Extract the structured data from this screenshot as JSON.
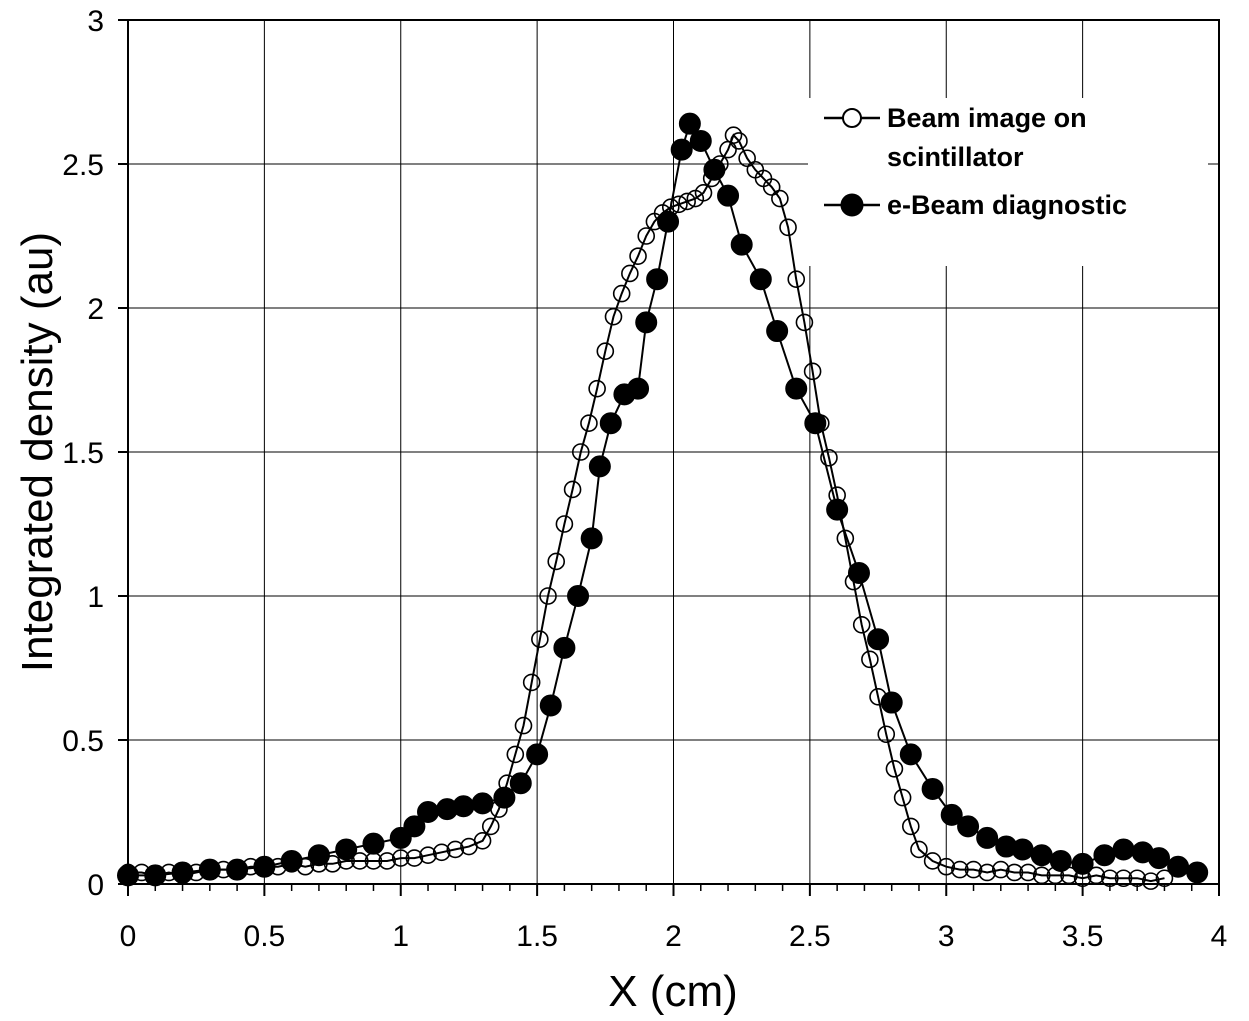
{
  "chart_data": {
    "type": "scatter",
    "title": "",
    "xlabel": "X (cm)",
    "ylabel": "Integrated density (au)",
    "xlim": [
      0,
      4
    ],
    "ylim": [
      0,
      3
    ],
    "x_ticks": [
      "0",
      "0.5",
      "1",
      "1.5",
      "2",
      "2.5",
      "3",
      "3.5",
      "4"
    ],
    "y_ticks": [
      "0",
      "0.5",
      "1",
      "1.5",
      "2",
      "2.5",
      "3"
    ],
    "grid": true,
    "legend_position": "top-right",
    "series": [
      {
        "name": "Beam image on scintillator",
        "marker": "open-circle",
        "x": [
          0.0,
          0.05,
          0.1,
          0.15,
          0.2,
          0.25,
          0.3,
          0.35,
          0.4,
          0.45,
          0.5,
          0.55,
          0.6,
          0.65,
          0.7,
          0.75,
          0.8,
          0.85,
          0.9,
          0.95,
          1.0,
          1.05,
          1.1,
          1.15,
          1.2,
          1.25,
          1.3,
          1.33,
          1.36,
          1.39,
          1.42,
          1.45,
          1.48,
          1.51,
          1.54,
          1.57,
          1.6,
          1.63,
          1.66,
          1.69,
          1.72,
          1.75,
          1.78,
          1.81,
          1.84,
          1.87,
          1.9,
          1.93,
          1.96,
          1.99,
          2.02,
          2.05,
          2.08,
          2.11,
          2.14,
          2.17,
          2.2,
          2.22,
          2.24,
          2.27,
          2.3,
          2.33,
          2.36,
          2.39,
          2.42,
          2.45,
          2.48,
          2.51,
          2.54,
          2.57,
          2.6,
          2.63,
          2.66,
          2.69,
          2.72,
          2.75,
          2.78,
          2.81,
          2.84,
          2.87,
          2.9,
          2.95,
          3.0,
          3.05,
          3.1,
          3.15,
          3.2,
          3.25,
          3.3,
          3.35,
          3.4,
          3.45,
          3.5,
          3.55,
          3.6,
          3.65,
          3.7,
          3.75,
          3.8
        ],
        "y": [
          0.04,
          0.04,
          0.03,
          0.04,
          0.03,
          0.04,
          0.05,
          0.05,
          0.05,
          0.06,
          0.06,
          0.06,
          0.07,
          0.06,
          0.07,
          0.07,
          0.08,
          0.08,
          0.08,
          0.08,
          0.09,
          0.09,
          0.1,
          0.11,
          0.12,
          0.13,
          0.15,
          0.2,
          0.26,
          0.35,
          0.45,
          0.55,
          0.7,
          0.85,
          1.0,
          1.12,
          1.25,
          1.37,
          1.5,
          1.6,
          1.72,
          1.85,
          1.97,
          2.05,
          2.12,
          2.18,
          2.25,
          2.3,
          2.33,
          2.35,
          2.36,
          2.37,
          2.38,
          2.4,
          2.45,
          2.5,
          2.55,
          2.6,
          2.58,
          2.52,
          2.48,
          2.45,
          2.42,
          2.38,
          2.28,
          2.1,
          1.95,
          1.78,
          1.6,
          1.48,
          1.35,
          1.2,
          1.05,
          0.9,
          0.78,
          0.65,
          0.52,
          0.4,
          0.3,
          0.2,
          0.12,
          0.08,
          0.06,
          0.05,
          0.05,
          0.04,
          0.05,
          0.04,
          0.04,
          0.03,
          0.03,
          0.03,
          0.02,
          0.03,
          0.02,
          0.02,
          0.02,
          0.01,
          0.02
        ]
      },
      {
        "name": "e-Beam diagnostic",
        "marker": "filled-circle",
        "x": [
          0.0,
          0.1,
          0.2,
          0.3,
          0.4,
          0.5,
          0.6,
          0.7,
          0.8,
          0.9,
          1.0,
          1.05,
          1.1,
          1.17,
          1.23,
          1.3,
          1.38,
          1.44,
          1.5,
          1.55,
          1.6,
          1.65,
          1.7,
          1.73,
          1.77,
          1.82,
          1.87,
          1.9,
          1.94,
          1.98,
          2.03,
          2.06,
          2.1,
          2.15,
          2.2,
          2.25,
          2.32,
          2.38,
          2.45,
          2.52,
          2.6,
          2.68,
          2.75,
          2.8,
          2.87,
          2.95,
          3.02,
          3.08,
          3.15,
          3.22,
          3.28,
          3.35,
          3.42,
          3.5,
          3.58,
          3.65,
          3.72,
          3.78,
          3.85,
          3.92
        ],
        "y": [
          0.03,
          0.03,
          0.04,
          0.05,
          0.05,
          0.06,
          0.08,
          0.1,
          0.12,
          0.14,
          0.16,
          0.2,
          0.25,
          0.26,
          0.27,
          0.28,
          0.3,
          0.35,
          0.45,
          0.62,
          0.82,
          1.0,
          1.2,
          1.45,
          1.6,
          1.7,
          1.72,
          1.95,
          2.1,
          2.3,
          2.55,
          2.64,
          2.58,
          2.48,
          2.39,
          2.22,
          2.1,
          1.92,
          1.72,
          1.6,
          1.3,
          1.08,
          0.85,
          0.63,
          0.45,
          0.33,
          0.24,
          0.2,
          0.16,
          0.13,
          0.12,
          0.1,
          0.08,
          0.07,
          0.1,
          0.12,
          0.11,
          0.09,
          0.06,
          0.04
        ]
      }
    ]
  }
}
